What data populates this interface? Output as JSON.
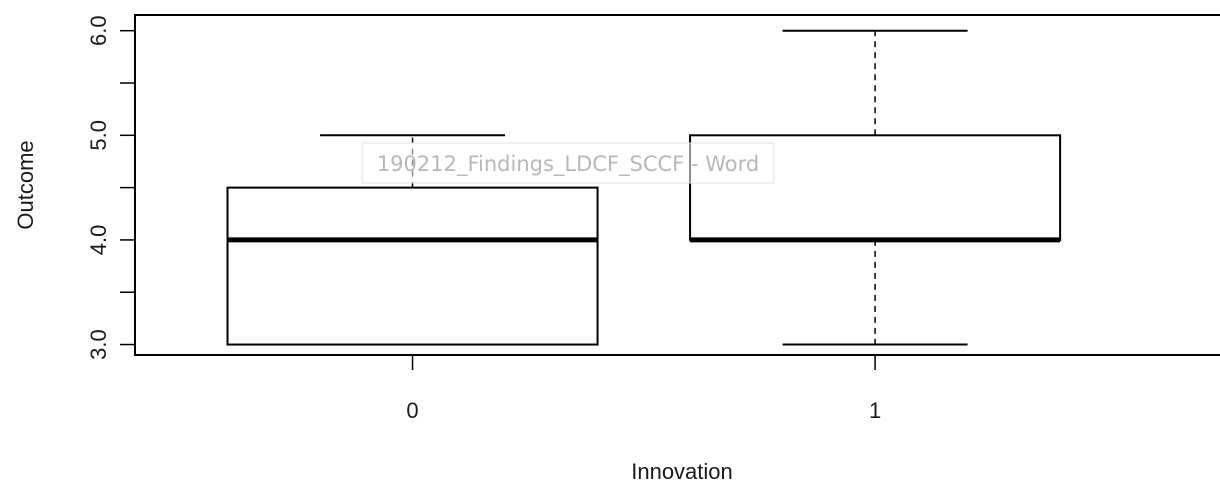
{
  "chart_data": {
    "type": "box",
    "xlabel": "Innovation",
    "ylabel": "Outcome",
    "ylim": [
      2.9,
      6.15
    ],
    "yticks": [
      3.0,
      3.5,
      4.0,
      4.5,
      5.0,
      5.5,
      6.0
    ],
    "ytick_labels": [
      "3.0",
      "",
      "4.0",
      "",
      "5.0",
      "",
      "6.0"
    ],
    "categories": [
      "0",
      "1"
    ],
    "boxes": [
      {
        "category": "0",
        "whisker_low": 3.0,
        "q1": 3.0,
        "median": 4.0,
        "q3": 4.5,
        "whisker_high": 5.0
      },
      {
        "category": "1",
        "whisker_low": 3.0,
        "q1": 4.0,
        "median": 4.0,
        "q3": 5.0,
        "whisker_high": 6.0
      }
    ],
    "colors": {
      "line": "#000000",
      "box_fill": "#ffffff"
    }
  },
  "overlay": {
    "window_title": "190212_Findings_LDCF_SCCF - Word"
  }
}
